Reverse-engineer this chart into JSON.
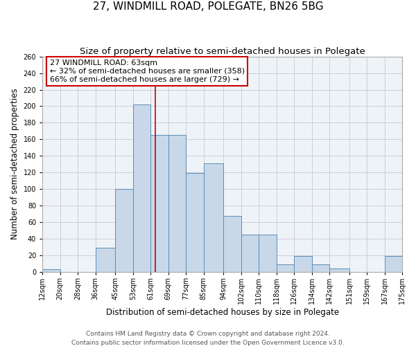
{
  "title": "27, WINDMILL ROAD, POLEGATE, BN26 5BG",
  "subtitle": "Size of property relative to semi-detached houses in Polegate",
  "xlabel": "Distribution of semi-detached houses by size in Polegate",
  "ylabel": "Number of semi-detached properties",
  "footer_line1": "Contains HM Land Registry data © Crown copyright and database right 2024.",
  "footer_line2": "Contains public sector information licensed under the Open Government Licence v3.0.",
  "bin_labels": [
    "12sqm",
    "20sqm",
    "28sqm",
    "36sqm",
    "45sqm",
    "53sqm",
    "61sqm",
    "69sqm",
    "77sqm",
    "85sqm",
    "94sqm",
    "102sqm",
    "110sqm",
    "118sqm",
    "126sqm",
    "134sqm",
    "142sqm",
    "151sqm",
    "159sqm",
    "167sqm",
    "175sqm"
  ],
  "bin_edges": [
    12,
    20,
    28,
    36,
    45,
    53,
    61,
    69,
    77,
    85,
    94,
    102,
    110,
    118,
    126,
    134,
    142,
    151,
    159,
    167,
    175
  ],
  "bar_heights": [
    3,
    0,
    0,
    29,
    100,
    202,
    165,
    165,
    119,
    131,
    67,
    45,
    45,
    9,
    19,
    9,
    4,
    0,
    0,
    19,
    0
  ],
  "bar_color": "#C8D8E8",
  "bar_edge_color": "#5B8DB8",
  "property_value": 63,
  "pct_smaller": 32,
  "count_smaller": 358,
  "pct_larger": 66,
  "count_larger": 729,
  "vline_color": "#CC0000",
  "annotation_box_edge_color": "#CC0000",
  "ylim": [
    0,
    260
  ],
  "yticks": [
    0,
    20,
    40,
    60,
    80,
    100,
    120,
    140,
    160,
    180,
    200,
    220,
    240,
    260
  ],
  "background_color": "#FFFFFF",
  "plot_bg_color": "#EEF3F8",
  "grid_color": "#C8C8D0",
  "title_fontsize": 11,
  "subtitle_fontsize": 9.5,
  "axis_label_fontsize": 8.5,
  "tick_fontsize": 7,
  "annotation_fontsize": 8,
  "footer_fontsize": 6.5
}
